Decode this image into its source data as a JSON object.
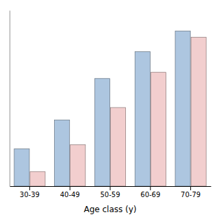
{
  "chart_data": {
    "type": "bar",
    "xlabel": "Age class (y)",
    "categories": [
      "30-39",
      "40-49",
      "50-59",
      "60-69",
      "70-79"
    ],
    "series": [
      {
        "color": "#adc6e0",
        "values": [
          18,
          32,
          52,
          65,
          75
        ]
      },
      {
        "color": "#f2cece",
        "values": [
          7,
          20,
          38,
          55,
          72
        ]
      }
    ],
    "ylim": [
      0,
      85
    ],
    "tick_labels": "x",
    "grid": false
  }
}
